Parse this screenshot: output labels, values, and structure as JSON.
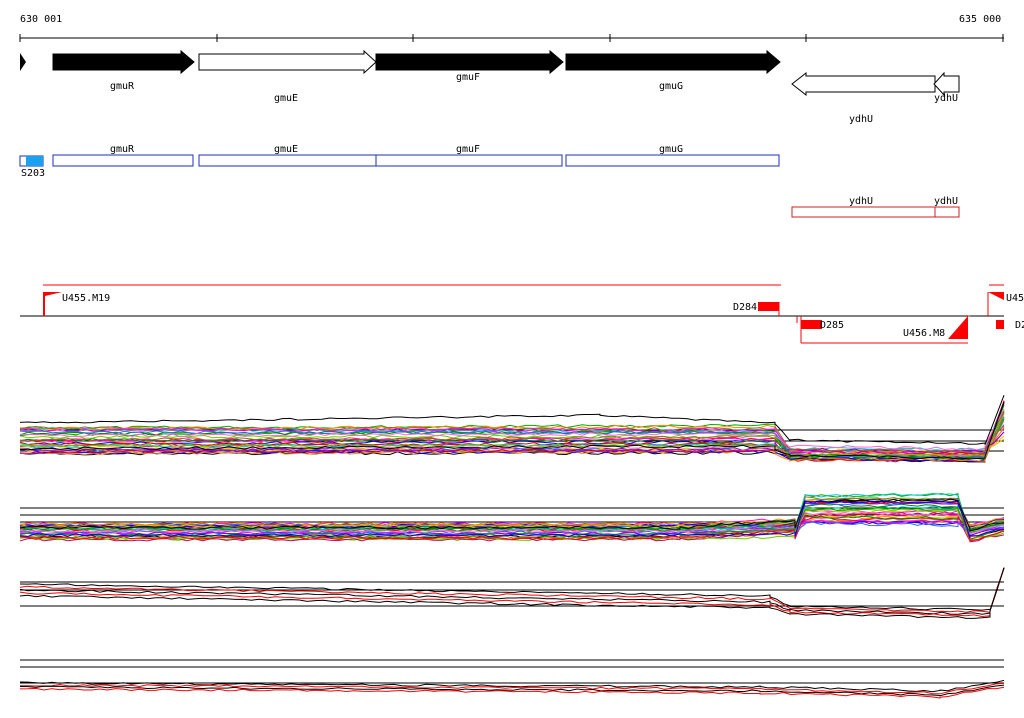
{
  "ruler": {
    "start_label": "630 001",
    "end_label": "635 000"
  },
  "genes": [
    {
      "name": "gmuR",
      "strand": "+",
      "filled": true
    },
    {
      "name": "gmuE",
      "strand": "+",
      "filled": false
    },
    {
      "name": "gmuF",
      "strand": "+",
      "filled": true
    },
    {
      "name": "gmuG",
      "strand": "+",
      "filled": true
    },
    {
      "name": "ydhU",
      "strand": "-",
      "filled": false
    },
    {
      "name": "ydhU",
      "strand": "-",
      "filled": false
    }
  ],
  "annotation_track": {
    "forward_boxes": [
      "gmuR",
      "gmuE",
      "gmuF",
      "gmuG"
    ],
    "reverse_boxes": [
      "ydhU",
      "ydhU"
    ],
    "small_feature": {
      "label": "S203",
      "color": "#1ea0f0"
    }
  },
  "transcripts": [
    {
      "label": "U455.M19"
    },
    {
      "label": "D284"
    },
    {
      "label": "D285"
    },
    {
      "label": "U456.M8"
    },
    {
      "label": "U45"
    },
    {
      "label": "D2"
    }
  ],
  "colors": {
    "forward_box": "#1a2fb8",
    "reverse_box": "#cc2222",
    "transcript": "#ff0000",
    "axis": "#000000"
  }
}
